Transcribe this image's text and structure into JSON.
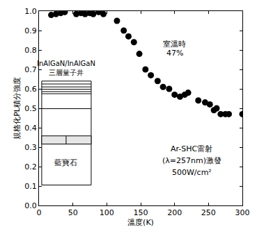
{
  "chart_data": {
    "type": "scatter",
    "x_label": "溫度(K)",
    "y_label": "規格化PL積分強度",
    "x": [
      18,
      25,
      32,
      38,
      55,
      62,
      68,
      75,
      80,
      88,
      95,
      115,
      125,
      132,
      140,
      148,
      157,
      165,
      175,
      183,
      192,
      200,
      208,
      215,
      220,
      235,
      245,
      252,
      258,
      262,
      268,
      275,
      280,
      300
    ],
    "values": [
      0.98,
      0.985,
      0.99,
      0.995,
      0.985,
      0.99,
      0.985,
      0.99,
      0.985,
      0.995,
      0.985,
      0.95,
      0.9,
      0.87,
      0.84,
      0.78,
      0.7,
      0.67,
      0.64,
      0.61,
      0.6,
      0.57,
      0.56,
      0.57,
      0.58,
      0.54,
      0.53,
      0.52,
      0.49,
      0.5,
      0.47,
      0.47,
      0.47,
      0.47
    ],
    "color": "#000000",
    "marker": "circle",
    "xlim": [
      0,
      300
    ],
    "xticks": [
      0,
      50,
      100,
      150,
      200,
      250,
      300
    ],
    "ylim": [
      0,
      1.0
    ],
    "yticks": [
      {
        "value": 0,
        "label": "0.0"
      },
      {
        "value": 0.1,
        "label": "0.1"
      },
      {
        "value": 0.2,
        "label": "0.2"
      },
      {
        "value": 0.3,
        "label": "0.3"
      },
      {
        "value": 0.4,
        "label": "0.4"
      },
      {
        "value": 0.5,
        "label": "0.5"
      },
      {
        "value": 0.6,
        "label": "0.6"
      },
      {
        "value": 0.7,
        "label": "0.7"
      },
      {
        "value": 0.8,
        "label": "0.8"
      },
      {
        "value": 0.9,
        "label": "0.9"
      },
      {
        "value": 1.0,
        "label": "1.0"
      }
    ],
    "grid": false,
    "annotations": [
      "InAlGaN/InAlGaN",
      "三層量子井",
      "藍寶石",
      "室溫時",
      "47%",
      "Ar-SHC雷射",
      "(λ=257nm)激發",
      "500W/cm²"
    ]
  }
}
